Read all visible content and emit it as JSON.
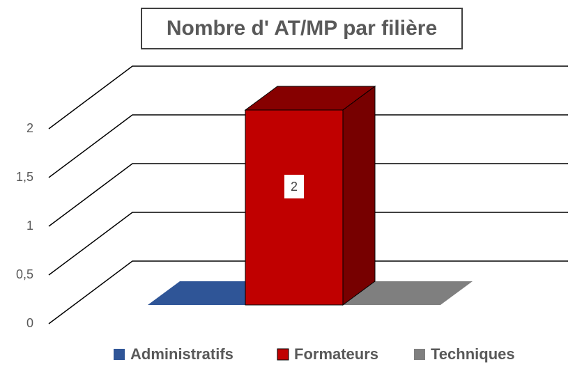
{
  "chart_data": {
    "type": "bar3d",
    "title": "Nombre d' AT/MP par filière",
    "categories": [
      "Administratifs",
      "Formateurs",
      "Techniques"
    ],
    "values": [
      0,
      2,
      0
    ],
    "colors": [
      "#2f5597",
      "#c00000",
      "#7f7f7f"
    ],
    "ylim": [
      0,
      2
    ],
    "yticks": [
      0,
      {
        "value": 0.5,
        "label": "0,5"
      },
      1,
      {
        "value": 1.5,
        "label": "1,5"
      },
      2
    ],
    "grid": true,
    "legend": "bottom"
  }
}
